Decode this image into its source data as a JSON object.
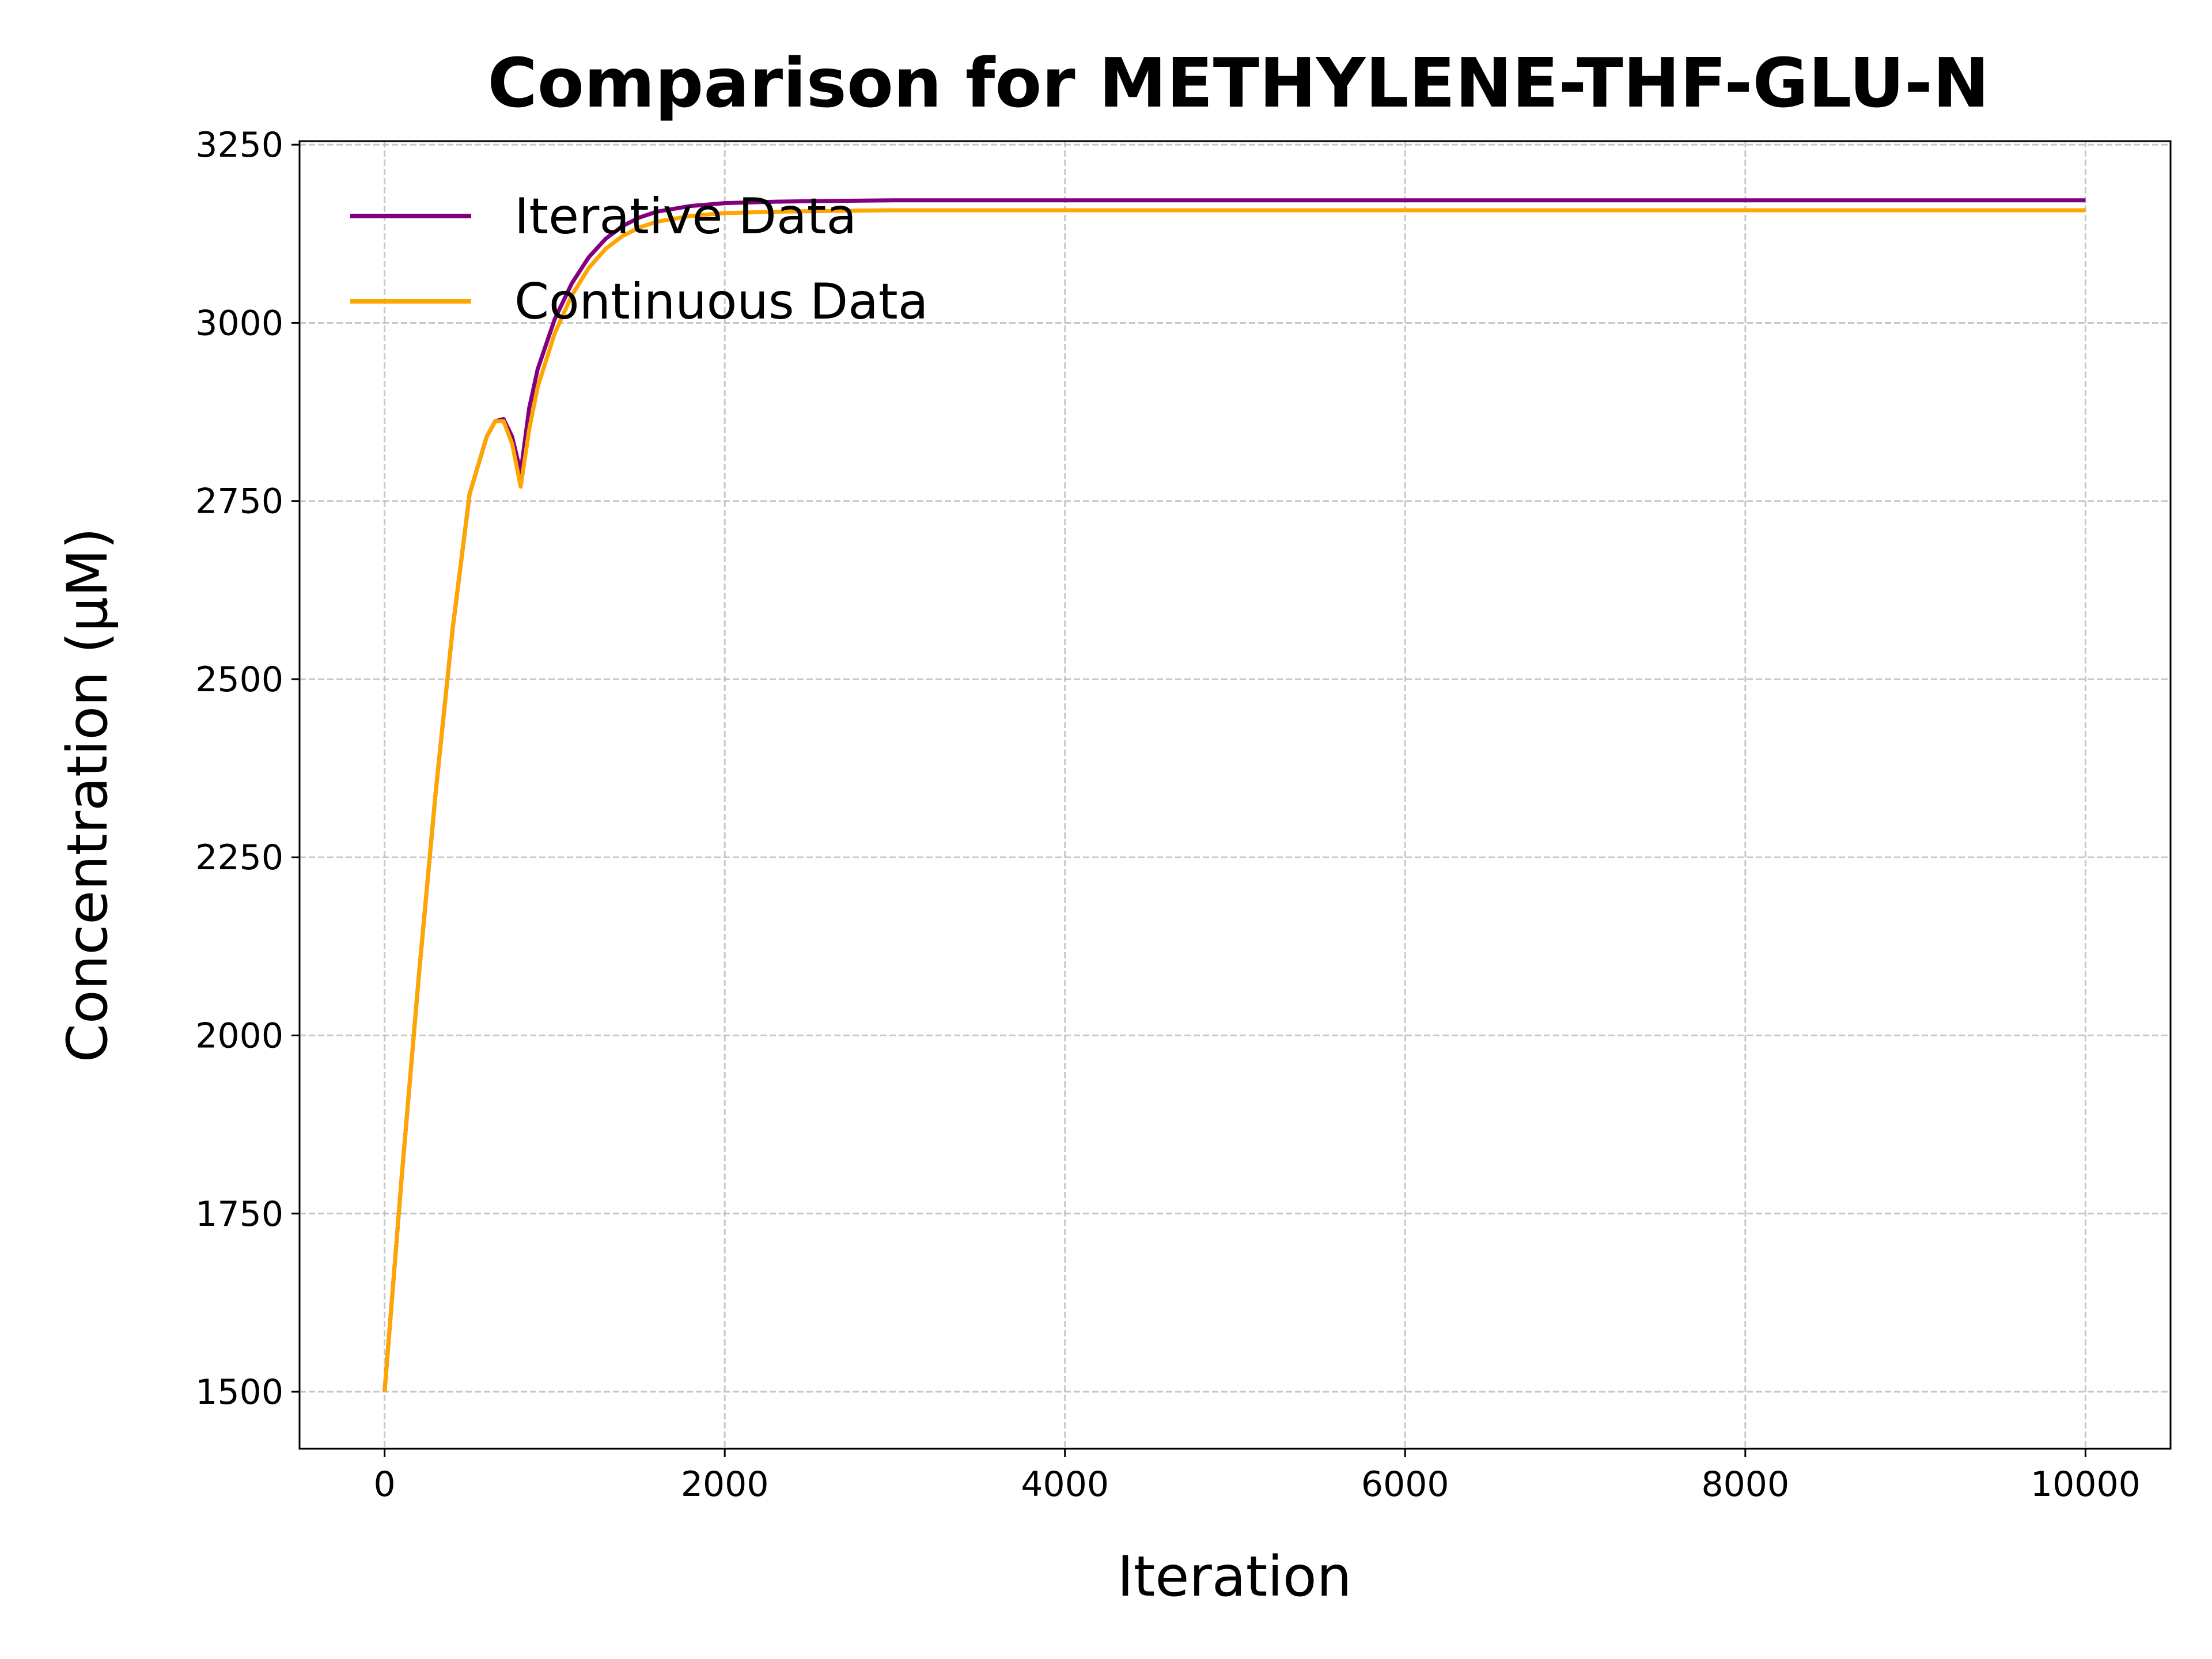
{
  "chart_data": {
    "type": "line",
    "title": "Comparison for METHYLENE-THF-GLU-N",
    "xlabel": "Iteration",
    "ylabel": "Concentration (μM)",
    "xlim": [
      -500,
      10500
    ],
    "ylim": [
      1420,
      3255
    ],
    "x_ticks": [
      0,
      2000,
      4000,
      6000,
      8000,
      10000
    ],
    "y_ticks": [
      1500,
      1750,
      2000,
      2250,
      2500,
      2750,
      3000,
      3250
    ],
    "grid": true,
    "legend_position": "upper-left",
    "series": [
      {
        "name": "Iterative Data",
        "color": "#800080",
        "x": [
          0,
          100,
          200,
          300,
          400,
          500,
          600,
          650,
          700,
          750,
          800,
          850,
          900,
          1000,
          1100,
          1200,
          1300,
          1400,
          1500,
          1600,
          1800,
          2000,
          2300,
          2600,
          3000,
          4000,
          5000,
          6000,
          7000,
          8000,
          9000,
          10000
        ],
        "y": [
          1500,
          1800,
          2080,
          2340,
          2570,
          2760,
          2840,
          2862,
          2865,
          2840,
          2790,
          2880,
          2935,
          3005,
          3055,
          3092,
          3118,
          3136,
          3148,
          3156,
          3164,
          3168,
          3170,
          3171,
          3172,
          3172,
          3172,
          3172,
          3172,
          3172,
          3172,
          3172
        ]
      },
      {
        "name": "Continuous Data",
        "color": "#FFA500",
        "x": [
          0,
          100,
          200,
          300,
          400,
          500,
          600,
          650,
          700,
          750,
          800,
          850,
          900,
          1000,
          1100,
          1200,
          1300,
          1400,
          1500,
          1600,
          1800,
          2000,
          2300,
          2600,
          3000,
          4000,
          5000,
          6000,
          7000,
          8000,
          9000,
          10000
        ],
        "y": [
          1500,
          1800,
          2080,
          2340,
          2570,
          2760,
          2840,
          2862,
          2862,
          2830,
          2770,
          2850,
          2910,
          2985,
          3038,
          3077,
          3104,
          3122,
          3134,
          3142,
          3150,
          3154,
          3156,
          3157,
          3158,
          3158,
          3158,
          3158,
          3158,
          3158,
          3158,
          3158
        ]
      }
    ]
  }
}
